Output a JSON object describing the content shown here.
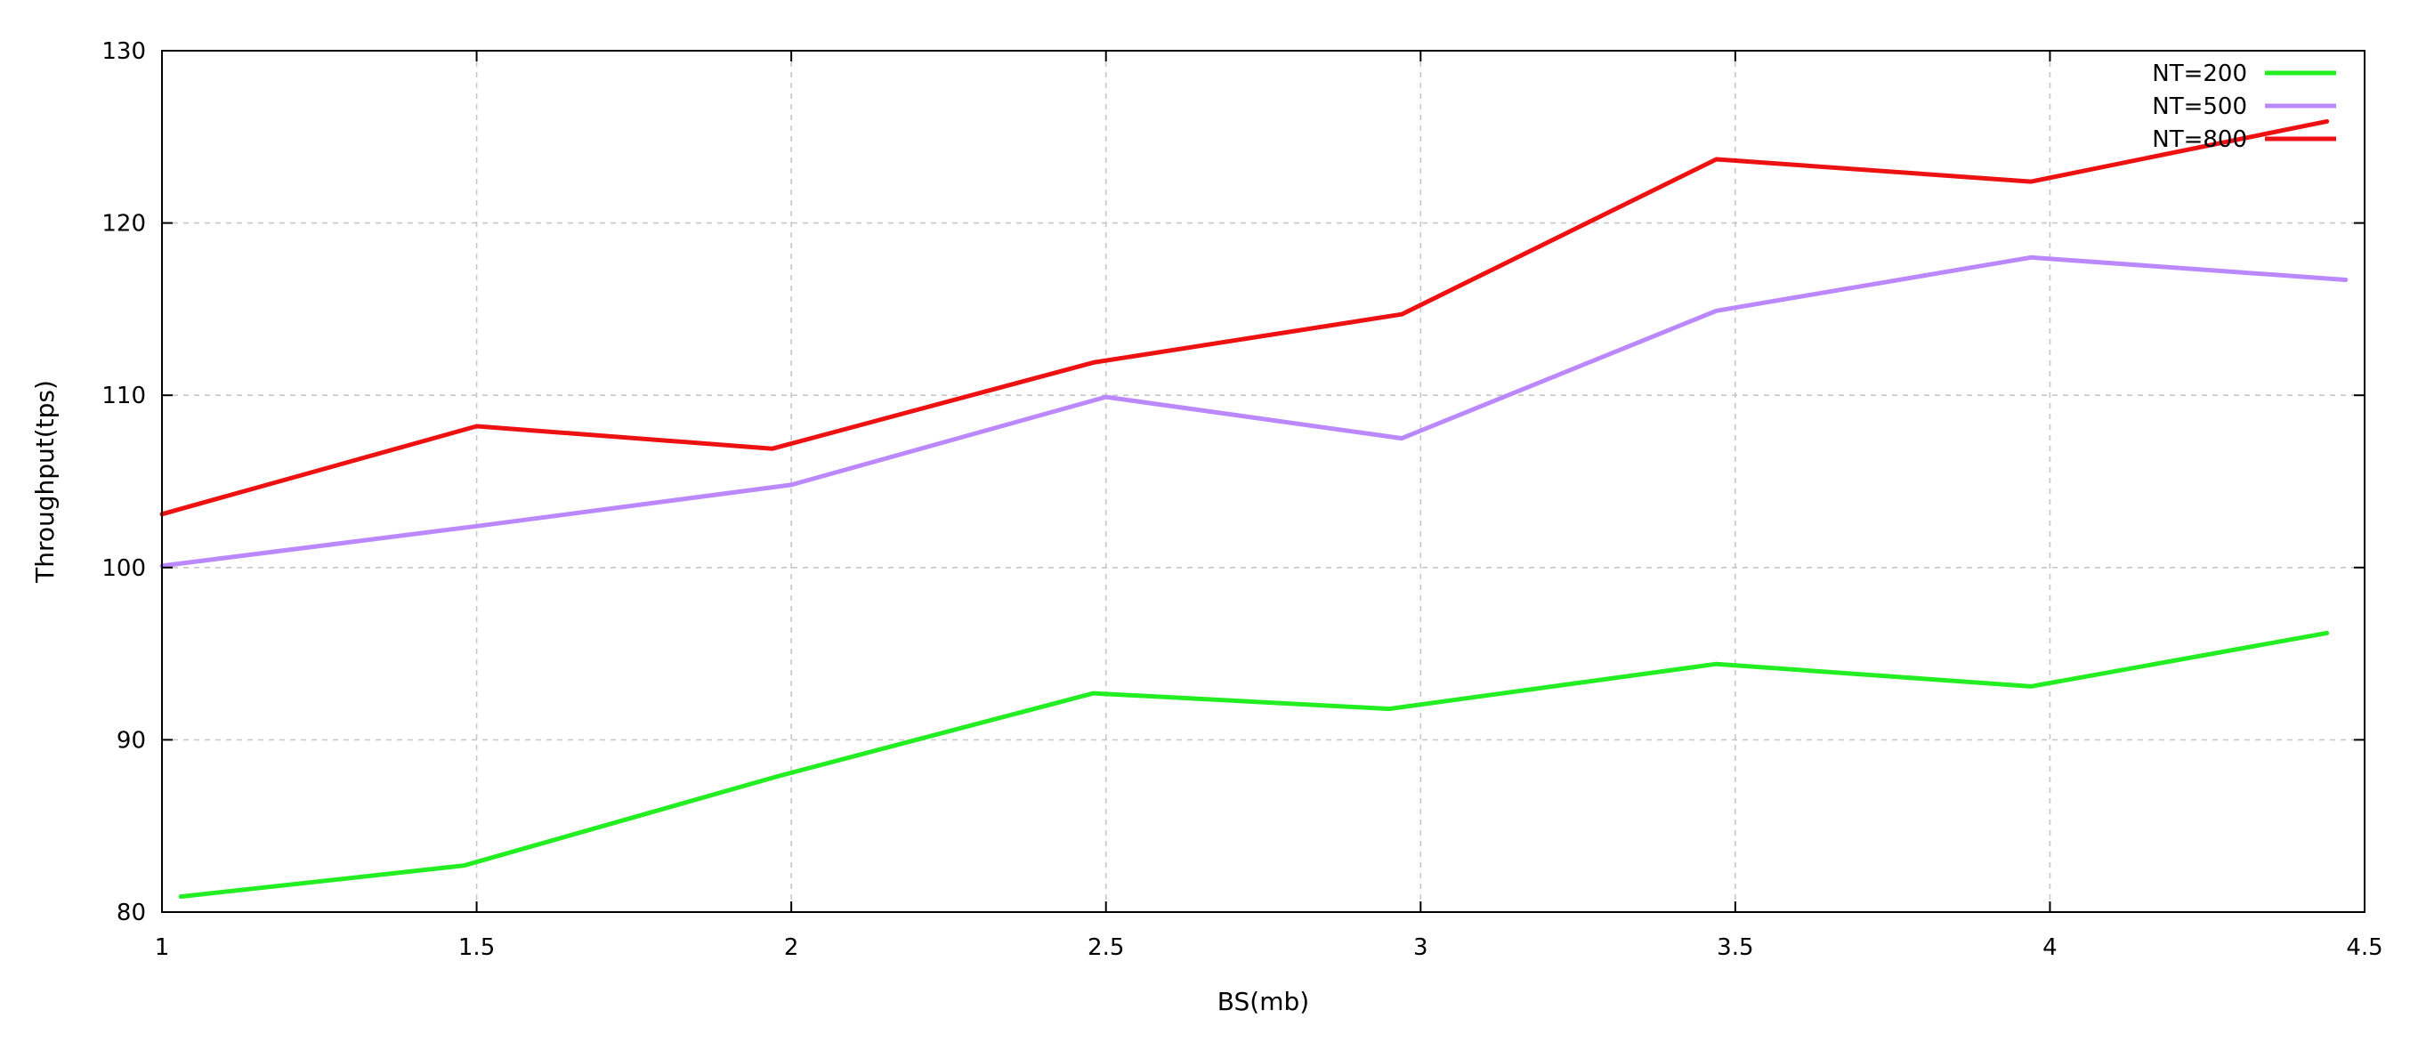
{
  "chart_data": {
    "type": "line",
    "title": "",
    "xlabel": "BS(mb)",
    "ylabel": "Throughput(tps)",
    "xlim": [
      1,
      4.5
    ],
    "ylim": [
      80,
      130
    ],
    "xticks": [
      1,
      1.5,
      2,
      2.5,
      3,
      3.5,
      4,
      4.5
    ],
    "xtick_labels": [
      "1",
      "1.5",
      "2",
      "2.5",
      "3",
      "3.5",
      "4",
      "4.5"
    ],
    "yticks": [
      80,
      90,
      100,
      110,
      120,
      130
    ],
    "ytick_labels": [
      "80",
      "90",
      "100",
      "110",
      "120",
      "130"
    ],
    "grid": true,
    "legend_position": "top-right",
    "series": [
      {
        "name": "NT=200",
        "color": "#22ee22",
        "x": [
          1.03,
          1.48,
          1.98,
          2.48,
          2.95,
          3.47,
          3.97,
          4.44
        ],
        "y": [
          80.9,
          82.7,
          87.9,
          92.7,
          91.8,
          94.4,
          93.1,
          96.2
        ]
      },
      {
        "name": "NT=500",
        "color": "#bb88ff",
        "x": [
          1.0,
          1.5,
          2.0,
          2.5,
          2.97,
          3.47,
          3.97,
          4.47
        ],
        "y": [
          100.1,
          102.4,
          104.8,
          109.9,
          107.5,
          114.9,
          118.0,
          116.7
        ]
      },
      {
        "name": "NT=800",
        "color": "#ee1111",
        "x": [
          1.0,
          1.5,
          1.97,
          2.48,
          2.97,
          3.47,
          3.97,
          4.44
        ],
        "y": [
          103.1,
          108.2,
          106.9,
          111.9,
          114.7,
          123.7,
          122.4,
          125.9
        ]
      }
    ]
  }
}
